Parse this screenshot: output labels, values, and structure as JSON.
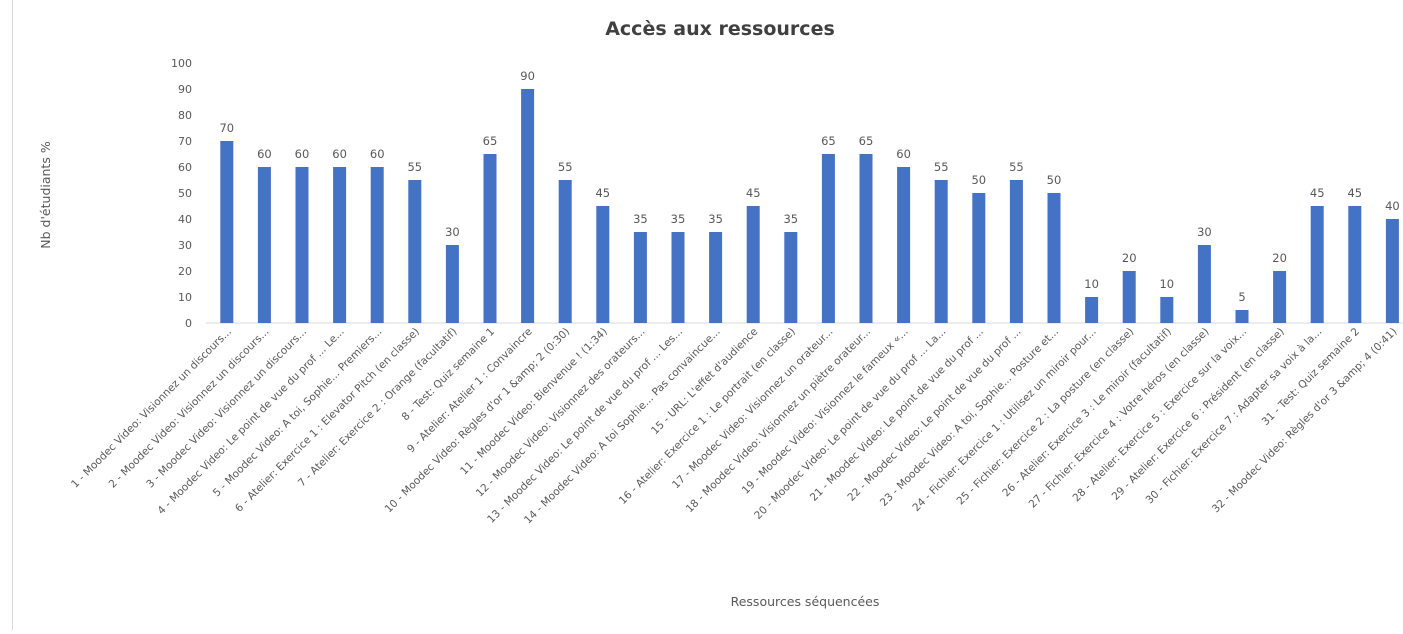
{
  "chart_data": {
    "type": "bar",
    "title": "Accès aux ressources",
    "xlabel": "Ressources  séquencées",
    "ylabel": "Nb d'étudiants %",
    "ylim": [
      0,
      100
    ],
    "yticks": [
      "0",
      "10",
      "20",
      "30",
      "40",
      "50",
      "60",
      "70",
      "80",
      "90",
      "100"
    ],
    "grid": false,
    "legend": "none",
    "bar_color": "#4472C4",
    "categories": [
      "1 - Moodec Video: Visionnez un discours...",
      "2 - Moodec Video: Visionnez un discours...",
      "3 - Moodec Video: Visionnez un discours...",
      "4 - Moodec Video: Le point de vue du prof ... Le...",
      "5 - Moodec Video: A toi, Sophie... Premiers...",
      "6 - Atelier: Exercice 1 : Elevator Pitch (en classe)",
      "7 - Atelier: Exercice 2 : Orange (facultatif)",
      "8 - Test: Quiz semaine 1",
      "9 - Atelier: Atelier 1 : Convaincre",
      "10 - Moodec Video: Règles d'or 1 &amp; 2 (0:30)",
      "11 - Moodec Video: Bienvenue ! (1:34)",
      "12 - Moodec Video: Visionnez des orateurs...",
      "13 - Moodec Video: Le point de vue du prof ... Les...",
      "14 - Moodec Video: A toi Sophie... Pas convaincue...",
      "15 - URL: L'effet d'audience",
      "16 - Atelier: Exercice 1 : Le portrait (en classe)",
      "17 - Moodec Video: Visionnez un orateur...",
      "18 - Moodec Video: Visionnez un piètre orateur...",
      "19 - Moodec Video: Visionnez le fameux «...",
      "20 - Moodec Video: Le point de vue du prof ... La...",
      "21 - Moodec Video: Le point de vue du prof ...",
      "22 - Moodec Video: Le point de vue du prof ...",
      "23 - Moodec Video: A toi, Sophie... Posture et...",
      "24 - Fichier: Exercice 1 : Utilisez un miroir pour...",
      "25 - Fichier: Exercice 2 : La posture (en classe)",
      "26 - Atelier: Exercice 3 : Le miroir (facultatif)",
      "27 - Fichier: Exercice 4 : Votre héros (en classe)",
      "28 - Atelier: Exercice 5 : Exercice sur la voix...",
      "29 - Atelier: Exercice 6 : Président (en classe)",
      "30 - Fichier: Exercice 7 : Adapter sa voix à la...",
      "31 - Test: Quiz semaine 2",
      "32 - Moodec Video: Règles d'or 3 &amp; 4 (0:41)"
    ],
    "values": [
      70,
      60,
      60,
      60,
      60,
      55,
      30,
      65,
      90,
      55,
      45,
      35,
      35,
      35,
      45,
      35,
      65,
      65,
      60,
      55,
      50,
      55,
      50,
      10,
      20,
      10,
      30,
      5,
      20,
      45,
      45,
      40
    ],
    "value_labels": [
      "70",
      "60",
      "60",
      "60",
      "60",
      "55",
      "30",
      "65",
      "90",
      "55",
      "45",
      "35",
      "35",
      "35",
      "45",
      "35",
      "65",
      "65",
      "60",
      "55",
      "50",
      "55",
      "50",
      "10",
      "20",
      "10",
      "30",
      "5",
      "20",
      "45",
      "45",
      "40"
    ]
  }
}
